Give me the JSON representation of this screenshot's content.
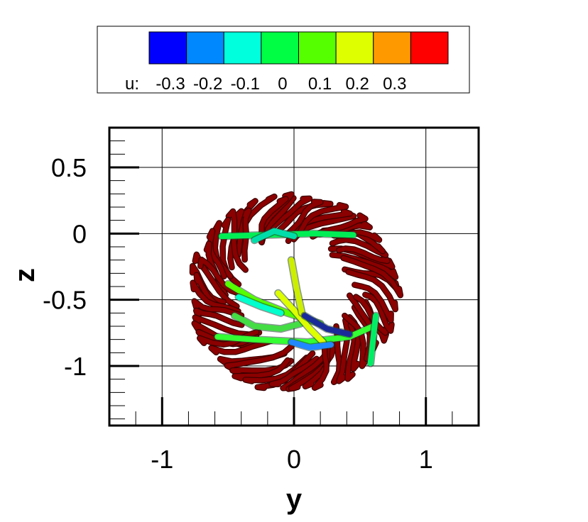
{
  "chart_data": {
    "type": "streamtube",
    "xlabel": "y",
    "ylabel": "z",
    "xlim": [
      -1.4,
      1.4
    ],
    "ylim": [
      -1.45,
      0.8
    ],
    "x_ticks": [
      {
        "value": -1,
        "label": "-1"
      },
      {
        "value": 0,
        "label": "0"
      },
      {
        "value": 1,
        "label": "1"
      }
    ],
    "y_ticks": [
      {
        "value": 0.5,
        "label": "0.5"
      },
      {
        "value": 0,
        "label": "0"
      },
      {
        "value": -0.5,
        "label": "-0.5"
      },
      {
        "value": -1,
        "label": "-1"
      }
    ],
    "grid": true,
    "legend": {
      "position": "top",
      "variable_label": "u:",
      "levels": [
        {
          "value": -0.3,
          "label": "-0.3",
          "color": "#0000ff"
        },
        {
          "value": -0.2,
          "label": "-0.2",
          "color": "#0088ff"
        },
        {
          "value": -0.1,
          "label": "-0.1",
          "color": "#00ffdd"
        },
        {
          "value": 0,
          "label": "0",
          "color": "#00ff44"
        },
        {
          "value": 0.1,
          "label": "0.1",
          "color": "#55ff00"
        },
        {
          "value": 0.2,
          "label": "0.2",
          "color": "#ddff00"
        },
        {
          "value": 0.3,
          "label": "0.3",
          "color": "#ff9900"
        },
        {
          "value": 0.4,
          "label": "",
          "color": "#ff0000"
        }
      ]
    },
    "tube_groups": [
      {
        "name": "outer-streamtubes",
        "color": "#8b0000",
        "center": [
          0.0,
          -0.45
        ],
        "radius": [
          0.75,
          0.7
        ]
      }
    ],
    "inner_tubes": [
      {
        "color": "#00ee55",
        "points": [
          [
            -0.55,
            -0.02
          ],
          [
            -0.2,
            -0.01
          ],
          [
            0.15,
            0.0
          ],
          [
            0.45,
            -0.01
          ]
        ]
      },
      {
        "color": "#33ff33",
        "points": [
          [
            -0.58,
            -0.78
          ],
          [
            -0.3,
            -0.8
          ],
          [
            0.1,
            -0.82
          ],
          [
            0.42,
            -0.78
          ],
          [
            0.6,
            -0.7
          ]
        ]
      },
      {
        "color": "#55ff00",
        "points": [
          [
            -0.5,
            -0.38
          ],
          [
            -0.3,
            -0.5
          ],
          [
            -0.05,
            -0.6
          ],
          [
            0.2,
            -0.68
          ]
        ]
      },
      {
        "color": "#44dd44",
        "points": [
          [
            -0.45,
            -0.62
          ],
          [
            -0.3,
            -0.7
          ],
          [
            -0.1,
            -0.72
          ],
          [
            0.05,
            -0.68
          ]
        ]
      },
      {
        "color": "#00ffcc",
        "points": [
          [
            -0.42,
            -0.48
          ],
          [
            -0.25,
            -0.55
          ],
          [
            -0.1,
            -0.6
          ]
        ]
      },
      {
        "color": "#00ee66",
        "points": [
          [
            0.62,
            -0.62
          ],
          [
            0.6,
            -0.8
          ],
          [
            0.58,
            -0.98
          ]
        ]
      },
      {
        "color": "#ddff00",
        "points": [
          [
            -0.12,
            -0.45
          ],
          [
            0.0,
            -0.58
          ],
          [
            0.12,
            -0.72
          ],
          [
            0.22,
            -0.82
          ]
        ]
      },
      {
        "color": "#ccee00",
        "points": [
          [
            -0.02,
            -0.2
          ],
          [
            0.02,
            -0.42
          ],
          [
            0.06,
            -0.6
          ]
        ]
      },
      {
        "color": "#1a2b99",
        "points": [
          [
            0.08,
            -0.62
          ],
          [
            0.25,
            -0.72
          ],
          [
            0.42,
            -0.76
          ]
        ]
      },
      {
        "color": "#2288ff",
        "points": [
          [
            -0.02,
            -0.82
          ],
          [
            0.12,
            -0.86
          ],
          [
            0.28,
            -0.84
          ]
        ]
      },
      {
        "color": "#00ddaa",
        "points": [
          [
            -0.3,
            -0.05
          ],
          [
            -0.15,
            0.02
          ],
          [
            0.0,
            -0.02
          ]
        ]
      }
    ]
  }
}
